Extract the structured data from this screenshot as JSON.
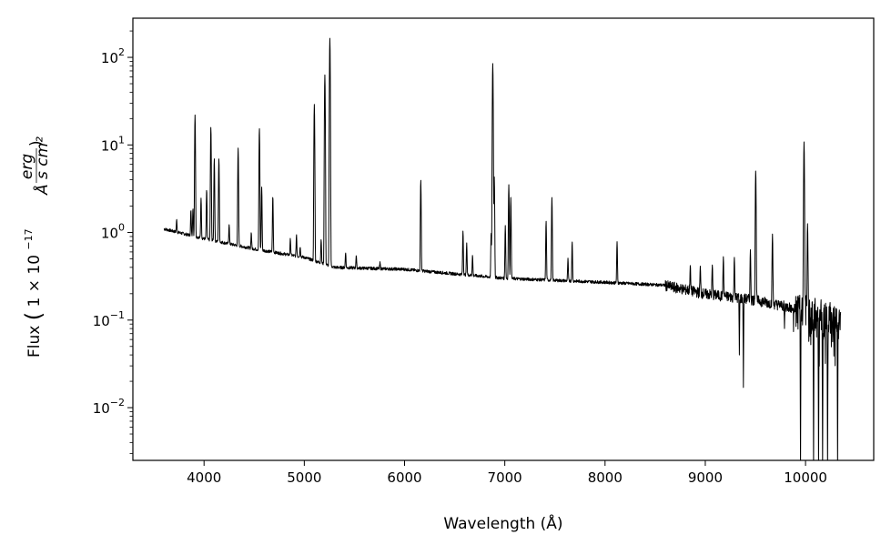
{
  "chart_data": {
    "type": "line",
    "xlabel": "Wavelength (Å)",
    "ylabel": {
      "prefix": "Flux",
      "factor": "1 × 10",
      "exponent": "−17",
      "unit_numerator": "erg",
      "unit_denominator": "Å s cm²"
    },
    "xlim": [
      3290,
      10680
    ],
    "ylim": [
      0.0025,
      280
    ],
    "yscale": "log",
    "grid": false,
    "x_ticks": [
      4000,
      5000,
      6000,
      7000,
      8000,
      9000,
      10000
    ],
    "x_tick_labels": [
      "4000",
      "5000",
      "6000",
      "7000",
      "8000",
      "9000",
      "10000"
    ],
    "y_ticks": [
      0.01,
      0.1,
      1,
      10,
      100
    ],
    "y_tick_labels": [
      {
        "base": "10",
        "exp": "−2"
      },
      {
        "base": "10",
        "exp": "−1"
      },
      {
        "base": "10",
        "exp": "0"
      },
      {
        "base": "10",
        "exp": "1"
      },
      {
        "base": "10",
        "exp": "2"
      }
    ],
    "series": [
      {
        "color": "#000000",
        "wavelength_range": [
          3600,
          10350
        ],
        "continuum": [
          [
            3600,
            1.1
          ],
          [
            4000,
            0.85
          ],
          [
            4500,
            0.65
          ],
          [
            5000,
            0.52
          ],
          [
            5300,
            0.4
          ],
          [
            6000,
            0.38
          ],
          [
            7000,
            0.3
          ],
          [
            8000,
            0.27
          ],
          [
            8600,
            0.25
          ],
          [
            9000,
            0.2
          ],
          [
            9500,
            0.17
          ],
          [
            10000,
            0.13
          ],
          [
            10350,
            0.1
          ]
        ],
        "emission_lines": [
          [
            3727,
            1.4
          ],
          [
            3869,
            1.8
          ],
          [
            3889,
            1.9
          ],
          [
            3910,
            22
          ],
          [
            3970,
            2.5
          ],
          [
            4026,
            3.1
          ],
          [
            4068,
            16
          ],
          [
            4102,
            7.0
          ],
          [
            4148,
            7.0
          ],
          [
            4250,
            1.25
          ],
          [
            4340,
            9.2
          ],
          [
            4471,
            1.0
          ],
          [
            4552,
            15.5
          ],
          [
            4575,
            3.3
          ],
          [
            4686,
            2.6
          ],
          [
            4861,
            0.85
          ],
          [
            4922,
            0.95
          ],
          [
            4959,
            0.7
          ],
          [
            5100,
            29
          ],
          [
            5168,
            0.85
          ],
          [
            5205,
            63
          ],
          [
            5255,
            165
          ],
          [
            5412,
            0.6
          ],
          [
            5518,
            0.55
          ],
          [
            5755,
            0.45
          ],
          [
            6162,
            4.0
          ],
          [
            6583,
            1.05
          ],
          [
            6620,
            0.75
          ],
          [
            6678,
            0.55
          ],
          [
            6864,
            1.0
          ],
          [
            6880,
            85
          ],
          [
            6895,
            4.3
          ],
          [
            7005,
            1.2
          ],
          [
            7040,
            3.5
          ],
          [
            7060,
            2.5
          ],
          [
            7412,
            1.35
          ],
          [
            7470,
            2.5
          ],
          [
            7630,
            0.5
          ],
          [
            7672,
            0.78
          ],
          [
            8120,
            0.78
          ],
          [
            8850,
            0.42
          ],
          [
            8950,
            0.4
          ],
          [
            9070,
            0.42
          ],
          [
            9180,
            0.52
          ],
          [
            9290,
            0.52
          ],
          [
            9450,
            0.62
          ],
          [
            9503,
            5.1
          ],
          [
            9670,
            0.95
          ],
          [
            9985,
            10.8
          ],
          [
            10020,
            1.2
          ]
        ],
        "absorption_lines": [
          [
            9340,
            0.04
          ],
          [
            9380,
            0.017
          ],
          [
            9790,
            0.08
          ],
          [
            9950,
            0.002
          ],
          [
            10080,
            0.002
          ],
          [
            10130,
            0.002
          ],
          [
            10170,
            0.002
          ],
          [
            10220,
            0.002
          ],
          [
            10320,
            0.002
          ]
        ]
      }
    ]
  }
}
